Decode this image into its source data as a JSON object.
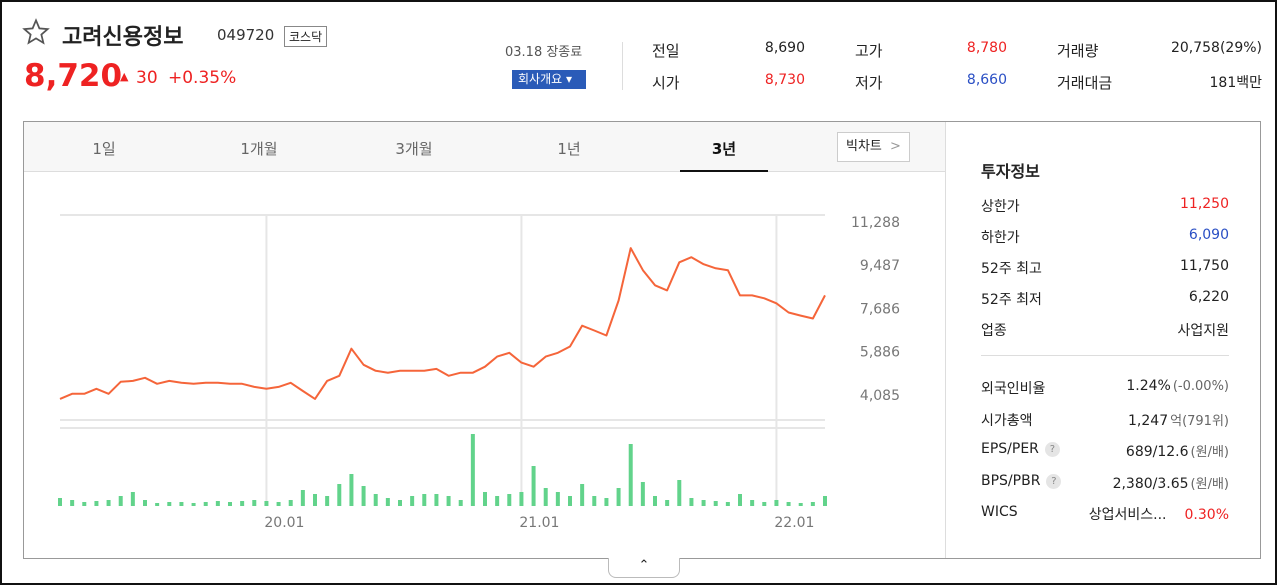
{
  "header": {
    "name": "고려신용정보",
    "code": "049720",
    "market": "코스닥",
    "price": "8,720",
    "change": "30",
    "change_pct": "+0.35%",
    "status": "03.18 장종료",
    "company_button": "회사개요"
  },
  "quote": [
    [
      {
        "label": "전일",
        "value": "8,690"
      },
      {
        "label": "시가",
        "value": "8,730",
        "tone": "up"
      }
    ],
    [
      {
        "label": "고가",
        "value": "8,780",
        "tone": "up"
      },
      {
        "label": "저가",
        "value": "8,660",
        "tone": "down"
      }
    ],
    [
      {
        "label": "거래량",
        "value": "20,758(29%)"
      },
      {
        "label": "거래대금",
        "value": "181백만"
      }
    ]
  ],
  "tabs": [
    "1일",
    "1개월",
    "3개월",
    "1년",
    "3년"
  ],
  "active_tab": 4,
  "big_chart": "빅차트",
  "chart_data": {
    "type": "line",
    "categories": [
      null,
      null,
      null,
      null,
      null,
      null,
      null,
      null,
      null,
      null,
      null,
      null,
      null,
      null,
      null,
      null,
      null,
      "20.01",
      null,
      null,
      null,
      null,
      null,
      null,
      null,
      null,
      null,
      null,
      null,
      null,
      null,
      null,
      null,
      null,
      null,
      null,
      null,
      null,
      "21.01",
      null,
      null,
      null,
      null,
      null,
      null,
      null,
      null,
      null,
      null,
      null,
      null,
      null,
      null,
      null,
      null,
      null,
      null,
      null,
      null,
      "22.01",
      null,
      null,
      null,
      null
    ],
    "series": [
      {
        "color": "#f5653a",
        "values": [
          3920,
          4130,
          4130,
          4340,
          4130,
          4630,
          4670,
          4800,
          4550,
          4670,
          4590,
          4550,
          4590,
          4590,
          4550,
          4550,
          4420,
          4340,
          4420,
          4590,
          4250,
          3920,
          4670,
          4880,
          6010,
          5340,
          5090,
          5010,
          5090,
          5090,
          5090,
          5170,
          4880,
          5010,
          5010,
          5260,
          5680,
          5840,
          5430,
          5260,
          5680,
          5840,
          6100,
          6970,
          6770,
          6560,
          8020,
          10200,
          9280,
          8650,
          8440,
          9610,
          9820,
          9530,
          9360,
          9280,
          8230,
          8230,
          8110,
          7900,
          7520,
          7390,
          7270,
          8230
        ]
      }
    ],
    "ylim": [
      3040,
      11580
    ],
    "yticks": [
      {
        "value": 4085,
        "label": "4,085"
      },
      {
        "value": 5886,
        "label": "5,886"
      },
      {
        "value": 7686,
        "label": "7,686"
      },
      {
        "value": 9487,
        "label": "9,487"
      },
      {
        "value": 11288,
        "label": "11,288"
      }
    ],
    "grid": true,
    "volume": {
      "color": "#62d38b",
      "ylim": [
        0,
        75
      ],
      "values": [
        8,
        6,
        4,
        5,
        6,
        10,
        14,
        6,
        3,
        4,
        4,
        3,
        4,
        5,
        4,
        5,
        6,
        5,
        4,
        6,
        16,
        12,
        10,
        22,
        32,
        20,
        12,
        8,
        6,
        10,
        12,
        12,
        10,
        6,
        72,
        14,
        10,
        12,
        14,
        40,
        18,
        14,
        10,
        22,
        10,
        8,
        18,
        62,
        24,
        10,
        6,
        26,
        8,
        6,
        5,
        4,
        12,
        6,
        4,
        6,
        4,
        3,
        4,
        10
      ]
    }
  },
  "invest": {
    "title": "투자정보",
    "rows": [
      {
        "label": "상한가",
        "value": "11,250",
        "tone": "up"
      },
      {
        "label": "하한가",
        "value": "6,090",
        "tone": "down"
      },
      {
        "label": "52주 최고",
        "value": "11,750"
      },
      {
        "label": "52주 최저",
        "value": "6,220"
      },
      {
        "label": "업종",
        "value": "사업지원"
      }
    ],
    "rows2": [
      {
        "label": "외국인비율",
        "value": "1.24%",
        "sub": "(-0.00%)"
      },
      {
        "label": "시가총액",
        "value": "1,247",
        "sub": "억(791위)"
      },
      {
        "label": "EPS/PER",
        "value": "689/12.6",
        "sub": "(원/배)",
        "help": true
      },
      {
        "label": "BPS/PBR",
        "value": "2,380/3.65",
        "sub": "(원/배)",
        "help": true
      },
      {
        "label": "WICS",
        "value": "상업서비스...",
        "sub": "0.30%",
        "tone": "up"
      }
    ]
  }
}
